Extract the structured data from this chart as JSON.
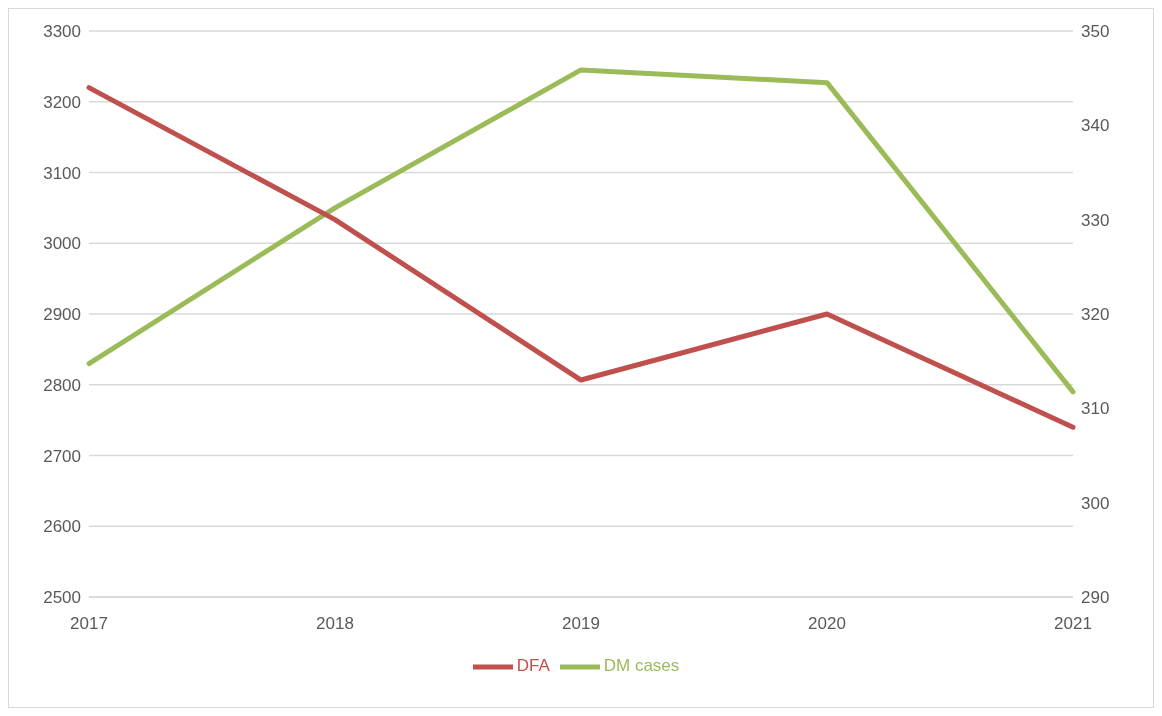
{
  "chart_data": {
    "type": "line",
    "categories": [
      "2017",
      "2018",
      "2019",
      "2020",
      "2021"
    ],
    "series": [
      {
        "name": "DM cases",
        "color": "#9bbb59",
        "values": [
          2830,
          3050,
          3245,
          3227,
          2790
        ]
      },
      {
        "name": "DFA",
        "color": "#c0504d",
        "values": [
          344,
          330,
          313,
          320,
          308
        ],
        "axis": "y2"
      }
    ],
    "ylim": [
      2500,
      3300
    ],
    "yticks": [
      2500,
      2600,
      2700,
      2800,
      2900,
      3000,
      3100,
      3200,
      3300
    ],
    "y2lim": [
      290,
      350
    ],
    "y2ticks": [
      290,
      300,
      310,
      320,
      330,
      340,
      350
    ],
    "grid": "y",
    "legend": "bottom"
  }
}
